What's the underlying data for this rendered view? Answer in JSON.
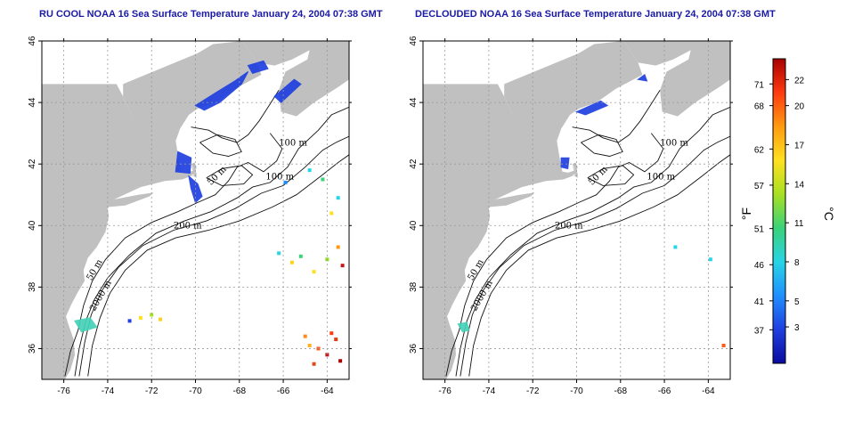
{
  "panels": [
    {
      "id": "raw",
      "title": "RU COOL NOAA 16 Sea Surface Temperature January 24, 2004 07:38 GMT"
    },
    {
      "id": "declouded",
      "title": "DECLOUDED NOAA 16 Sea Surface Temperature January 24, 2004 07:38 GMT"
    }
  ],
  "map": {
    "lon_range": [
      -77,
      -63
    ],
    "lat_range": [
      35,
      46
    ],
    "lon_ticks": [
      "-76",
      "-74",
      "-72",
      "-70",
      "-68",
      "-66",
      "-64"
    ],
    "lat_ticks": [
      "36",
      "38",
      "40",
      "42",
      "44",
      "46"
    ],
    "land_color": "#c0c0c0",
    "gridlines": "dotted"
  },
  "contour_labels": {
    "raw": [
      "100 m",
      "100 m",
      "50 m",
      "200 m",
      "50 m",
      "2000 m"
    ],
    "declouded": [
      "100 m",
      "100 m",
      "50 m",
      "200 m",
      "50 m",
      "2000 m"
    ]
  },
  "colorbar": {
    "fahrenheit_ticks": [
      "71",
      "68",
      "62",
      "57",
      "51",
      "46",
      "41",
      "37"
    ],
    "celsius_ticks": [
      "22",
      "20",
      "17",
      "14",
      "11",
      "8",
      "5",
      "3"
    ],
    "fahrenheit_unit": "°F",
    "celsius_unit": "°C",
    "colors": [
      "#0a0a9e",
      "#1f3fe0",
      "#1f8fff",
      "#28d4e6",
      "#3ad27a",
      "#a8e022",
      "#ffe020",
      "#ff9a10",
      "#ff3a10",
      "#a80000"
    ]
  }
}
